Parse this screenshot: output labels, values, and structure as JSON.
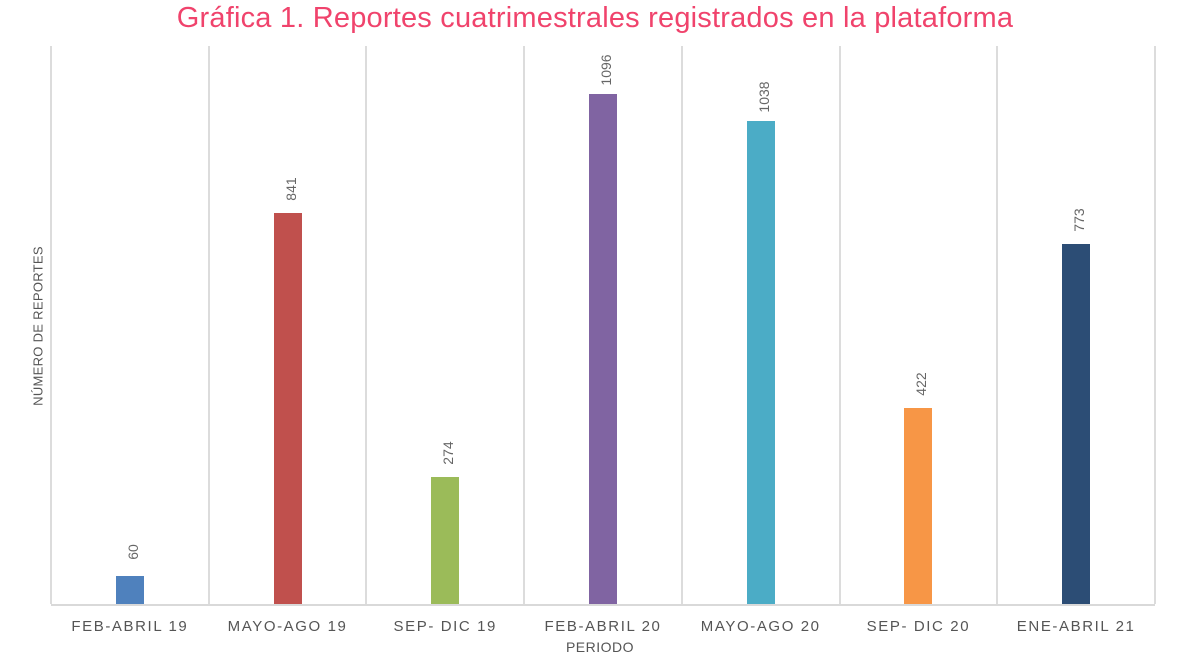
{
  "chart_data": {
    "type": "bar",
    "title": "Gráfica 1. Reportes cuatrimestrales registrados en la plataforma",
    "xlabel": "PERIODO",
    "ylabel": "NÚMERO DE REPORTES",
    "categories": [
      "FEB-ABRIL 19",
      "MAYO-AGO 19",
      "SEP- DIC 19",
      "FEB-ABRIL 20",
      "MAYO-AGO 20",
      "SEP- DIC 20",
      "ENE-ABRIL 21"
    ],
    "values": [
      60,
      841,
      274,
      1096,
      1038,
      422,
      773
    ],
    "colors": [
      "#4f81bd",
      "#c0504d",
      "#9bbb59",
      "#8064a2",
      "#4bacc6",
      "#f79646",
      "#2c4d75"
    ],
    "ylim": [
      0,
      1200
    ],
    "grid": false,
    "data_labels": true,
    "legend": null
  }
}
